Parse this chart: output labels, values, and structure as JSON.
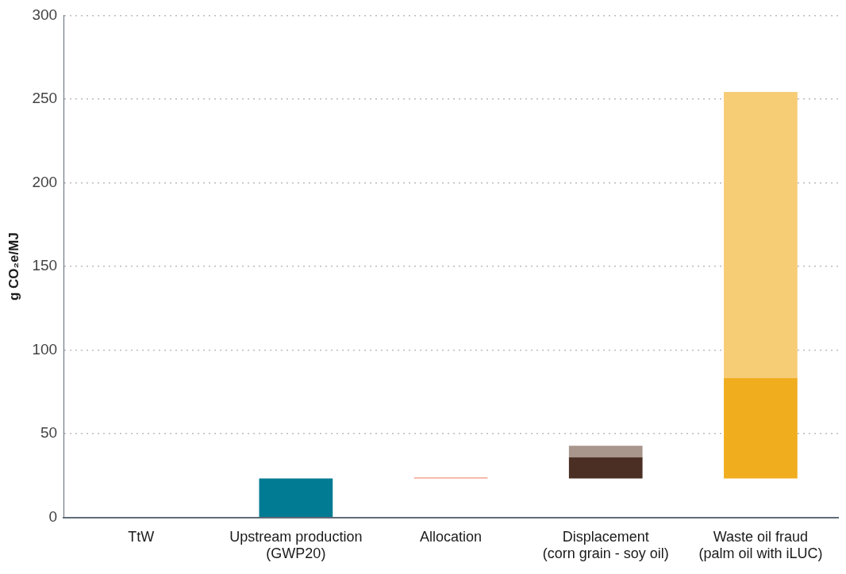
{
  "chart_data": {
    "type": "bar",
    "ylabel": "g CO₂e/MJ",
    "categories": [
      "TtW",
      "Upstream production (GWP20)",
      "Allocation",
      "Displacement (corn grain - soy oil)",
      "Waste oil fraud (palm oil with iLUC)"
    ],
    "series": [
      {
        "colors": [
          "#007b93",
          "#007b93",
          "#e8532a",
          "#4b2e24",
          "#f0ad1e"
        ],
        "values": [
          null,
          23.4,
          null,
          12.6,
          59.9
        ],
        "base": [
          null,
          0,
          null,
          23.4,
          23.4
        ]
      },
      {
        "colors": [
          "#f0937a",
          "#f0937a",
          "#f0937a",
          "#a8968c",
          "#f6cc75"
        ],
        "values": [
          null,
          null,
          0.5,
          6.9,
          171
        ],
        "base": [
          null,
          null,
          23.4,
          36,
          83.3
        ]
      }
    ],
    "ylim": [
      0,
      300
    ],
    "yticks": [
      0,
      50,
      100,
      150,
      200,
      250,
      300
    ],
    "grid": "y",
    "legend": false
  }
}
